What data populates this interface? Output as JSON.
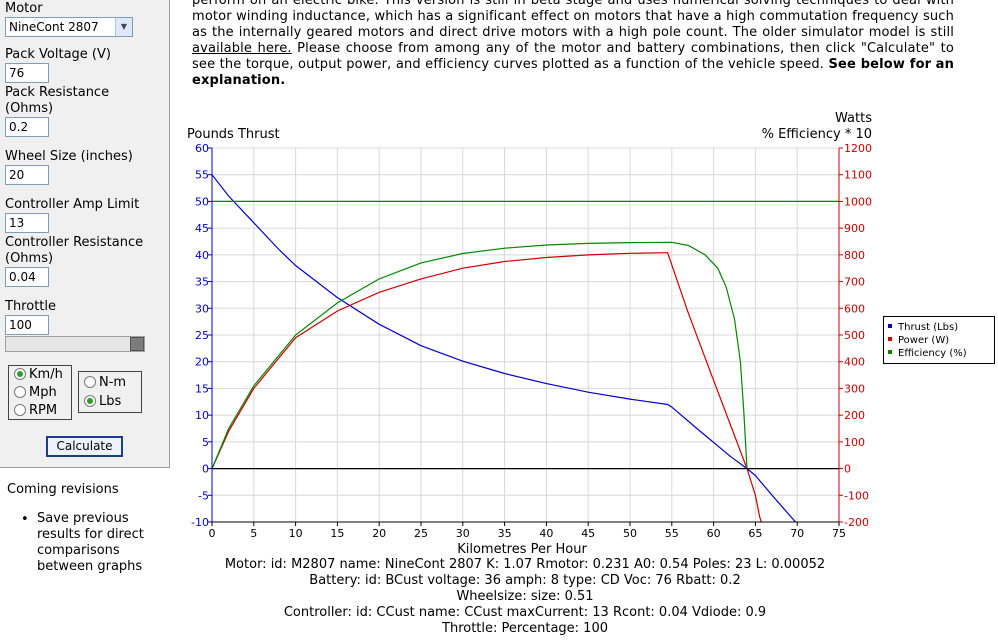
{
  "intro": {
    "line1": "perform on an electric bike. This version is still in beta stage and uses numerical solving techniques to deal with",
    "line2": "motor winding inductance, which has a significant effect on motors that have a high commutation frequency such",
    "line3": "as the internally geared motors and direct drive motors with a high pole count. The older simulator model is still",
    "link_text": "available here.",
    "line4_rest": " Please choose from among any of the motor and battery combinations, then click \"Calculate\" to",
    "line5_pre": "see the torque, output power, and efficiency curves plotted as a function of the vehicle speed. ",
    "line5_bold": "See below for",
    "line6_bold": "an explanation."
  },
  "form": {
    "motor_label": "Motor",
    "motor_value": "NineCont 2807",
    "pack_voltage_label": "Pack Voltage (V)",
    "pack_voltage_value": "76",
    "pack_resistance_label1": "Pack Resistance",
    "pack_resistance_label2": "(Ohms)",
    "pack_resistance_value": "0.2",
    "wheel_size_label": "Wheel Size (inches)",
    "wheel_size_value": "20",
    "amp_limit_label": "Controller Amp Limit",
    "amp_limit_value": "13",
    "ctrl_resistance_label1": "Controller Resistance",
    "ctrl_resistance_label2": "(Ohms)",
    "ctrl_resistance_value": "0.04",
    "throttle_label": "Throttle",
    "throttle_value": "100",
    "throttle_fraction": 1.0,
    "speed_units": [
      {
        "label": "Km/h",
        "selected": true
      },
      {
        "label": "Mph",
        "selected": false
      },
      {
        "label": "RPM",
        "selected": false
      }
    ],
    "torque_units": [
      {
        "label": "N-m",
        "selected": false
      },
      {
        "label": "Lbs",
        "selected": true
      }
    ],
    "calculate_label": "Calculate"
  },
  "revisions": {
    "title": "Coming revisions",
    "items": [
      "Save previous results for direct comparisons between graphs"
    ]
  },
  "chart_data": {
    "type": "line",
    "xlabel": "Kilometres Per Hour",
    "ylabel_left": "Pounds Thrust",
    "ylabel_right_top": "Watts",
    "ylabel_right": "% Efficiency  * 10",
    "xlim": [
      0,
      75
    ],
    "ylim_left": [
      -10,
      60
    ],
    "ylim_right": [
      -200,
      1200
    ],
    "x_ticks": [
      0,
      5,
      10,
      15,
      20,
      25,
      30,
      35,
      40,
      45,
      50,
      55,
      60,
      65,
      70,
      75
    ],
    "y_left_ticks": [
      -10,
      -5,
      0,
      5,
      10,
      15,
      20,
      25,
      30,
      35,
      40,
      45,
      50,
      55,
      60
    ],
    "y_right_ticks": [
      -200,
      -100,
      0,
      100,
      200,
      300,
      400,
      500,
      600,
      700,
      800,
      900,
      1000,
      1100,
      1200
    ],
    "grid": true,
    "legend_position": "right",
    "series": [
      {
        "name": "Thrust (Lbs)",
        "color": "#0000cc",
        "axis": "left",
        "x": [
          0,
          2,
          5,
          8,
          10,
          15,
          20,
          25,
          30,
          35,
          40,
          45,
          50,
          54.5,
          55,
          58,
          62,
          64,
          65,
          67,
          69.8
        ],
        "y": [
          55,
          51,
          46,
          41,
          38,
          32,
          27,
          23,
          20.1,
          17.8,
          15.9,
          14.3,
          13,
          12,
          11.5,
          7.5,
          2.3,
          0,
          -1.3,
          -5,
          -10
        ]
      },
      {
        "name": "Power (W)",
        "color": "#cc0000",
        "axis": "right",
        "x": [
          0,
          2,
          5,
          10,
          15,
          20,
          25,
          30,
          35,
          40,
          45,
          50,
          54.5,
          57,
          60,
          64,
          65,
          65.5,
          66
        ],
        "y": [
          0,
          140,
          300,
          490,
          590,
          660,
          710,
          750,
          775,
          790,
          800,
          806,
          808,
          580,
          330,
          0,
          -100,
          -180,
          -230
        ]
      },
      {
        "name": "Efficiency (%)",
        "color": "#008800",
        "axis": "right",
        "x": [
          0,
          2,
          5,
          10,
          15,
          20,
          25,
          30,
          35,
          40,
          45,
          50,
          55,
          57,
          59,
          60.5,
          61.5,
          62.5,
          63.2,
          63.6,
          64
        ],
        "y": [
          0,
          150,
          310,
          500,
          620,
          710,
          770,
          805,
          825,
          837,
          843,
          846,
          847,
          835,
          800,
          750,
          680,
          560,
          400,
          220,
          0
        ]
      },
      {
        "name": "",
        "color": "#008800",
        "axis": "right",
        "x": [
          0,
          75
        ],
        "y": [
          1000,
          1000
        ]
      },
      {
        "name": "",
        "color": "#000000",
        "axis": "right",
        "x": [
          0,
          75
        ],
        "y": [
          0,
          0
        ]
      }
    ]
  },
  "info": {
    "motor": "Motor: id: M2807 name: NineCont 2807 K: 1.07 Rmotor: 0.231 A0: 0.54 Poles: 23 L: 0.00052",
    "battery": "Battery: id: BCust voltage: 36 amph: 8 type: CD Voc: 76 Rbatt: 0.2",
    "wheel": "Wheelsize: size: 0.51",
    "controller": "Controller: id: CCust name: CCust maxCurrent: 13 Rcont: 0.04 Vdiode: 0.9",
    "throttle": "Throttle: Percentage: 100"
  }
}
